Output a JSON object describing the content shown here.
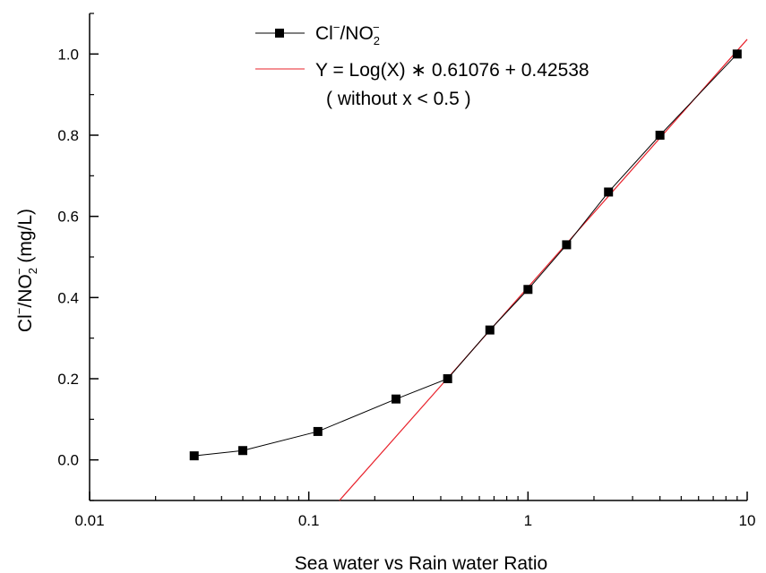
{
  "chart_data": {
    "type": "line",
    "xlabel": "Sea water vs Rain water Ratio",
    "ylabel_main": "Cl",
    "ylabel_sup1": "−",
    "ylabel_mid": "/NO",
    "ylabel_sub": "2",
    "ylabel_sup2": "−",
    "ylabel_unit": " (mg/L)",
    "xscale": "log",
    "xlim": [
      0.01,
      10
    ],
    "ylim": [
      -0.1,
      1.1
    ],
    "x_ticks": [
      0.01,
      0.1,
      1,
      10
    ],
    "x_tick_labels": [
      "0.01",
      "0.1",
      "1",
      "10"
    ],
    "y_ticks": [
      0.0,
      0.2,
      0.4,
      0.6,
      0.8,
      1.0
    ],
    "y_tick_labels": [
      "0.0",
      "0.2",
      "0.4",
      "0.6",
      "0.8",
      "1.0"
    ],
    "grid": false,
    "legend_position": "top",
    "series": [
      {
        "name_main": "Cl",
        "name_sup1": "−",
        "name_mid": "/NO",
        "name_sub": "2",
        "name_sup2": "−",
        "color": "#000000",
        "marker": "square",
        "x": [
          0.03,
          0.05,
          0.11,
          0.25,
          0.43,
          0.67,
          1.0,
          1.5,
          2.33,
          4.0,
          9.0
        ],
        "y": [
          0.01,
          0.023,
          0.07,
          0.15,
          0.2,
          0.32,
          0.42,
          0.53,
          0.66,
          0.8,
          1.0
        ]
      }
    ],
    "fit": {
      "label_line1": "Y = Log(X) ∗ 0.61076 + 0.42538",
      "label_line2": "( without x < 0.5 )",
      "color": "#e8202a",
      "slope": 0.61076,
      "intercept": 0.42538
    }
  }
}
